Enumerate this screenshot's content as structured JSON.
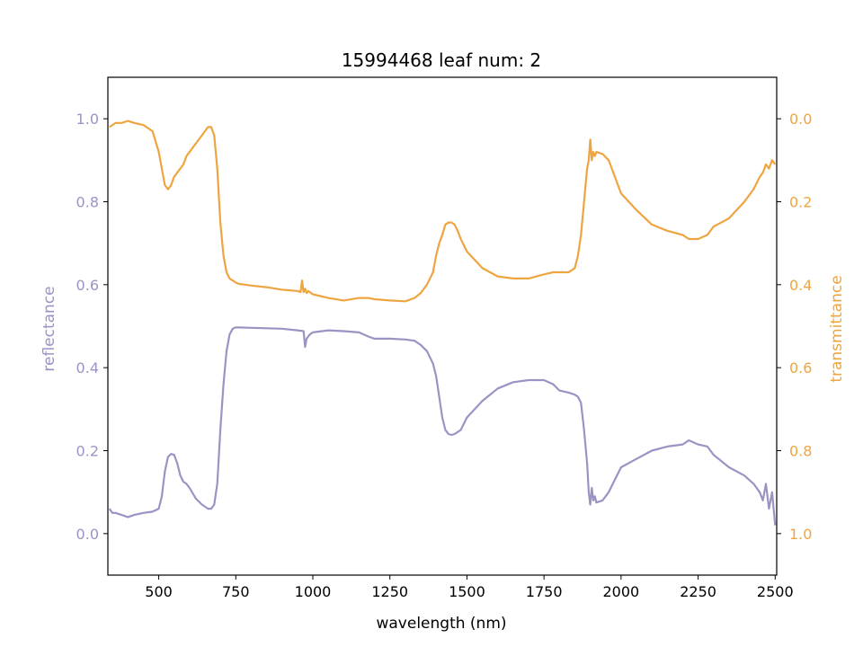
{
  "chart_data": {
    "type": "line",
    "title": "15994468 leaf num: 2",
    "xlabel": "wavelength (nm)",
    "ylabel": "reflectance",
    "y2label": "transmittance",
    "xlim": [
      335,
      2505
    ],
    "ylim": [
      -0.1,
      1.1
    ],
    "y2lim": [
      1.1,
      -0.1
    ],
    "x_ticks": [
      500,
      750,
      1000,
      1250,
      1500,
      1750,
      2000,
      2250,
      2500
    ],
    "y_ticks": [
      0.0,
      0.2,
      0.4,
      0.6,
      0.8,
      1.0
    ],
    "y2_ticks": [
      0.0,
      0.2,
      0.4,
      0.6,
      0.8,
      1.0
    ],
    "grid": false,
    "colors": {
      "reflectance": "#9a94c4",
      "transmittance": "#eea541"
    },
    "series": [
      {
        "name": "reflectance",
        "axis": "left",
        "x": [
          340,
          350,
          360,
          380,
          400,
          420,
          450,
          480,
          500,
          510,
          520,
          530,
          540,
          550,
          560,
          570,
          580,
          590,
          600,
          620,
          640,
          660,
          670,
          680,
          690,
          700,
          710,
          720,
          730,
          740,
          750,
          760,
          800,
          850,
          900,
          950,
          970,
          975,
          980,
          985,
          990,
          1000,
          1050,
          1100,
          1150,
          1180,
          1200,
          1250,
          1300,
          1330,
          1350,
          1370,
          1390,
          1400,
          1410,
          1420,
          1430,
          1440,
          1450,
          1460,
          1480,
          1500,
          1550,
          1600,
          1650,
          1700,
          1750,
          1780,
          1800,
          1830,
          1850,
          1860,
          1870,
          1880,
          1890,
          1895,
          1900,
          1905,
          1910,
          1915,
          1920,
          1940,
          1960,
          1980,
          2000,
          2050,
          2100,
          2150,
          2200,
          2220,
          2250,
          2280,
          2300,
          2350,
          2400,
          2430,
          2450,
          2460,
          2470,
          2480,
          2490,
          2500
        ],
        "values": [
          0.06,
          0.05,
          0.05,
          0.045,
          0.04,
          0.045,
          0.05,
          0.053,
          0.06,
          0.09,
          0.15,
          0.185,
          0.192,
          0.19,
          0.17,
          0.14,
          0.125,
          0.12,
          0.11,
          0.085,
          0.07,
          0.06,
          0.06,
          0.07,
          0.12,
          0.25,
          0.36,
          0.44,
          0.48,
          0.494,
          0.497,
          0.497,
          0.496,
          0.495,
          0.494,
          0.49,
          0.488,
          0.45,
          0.47,
          0.475,
          0.48,
          0.485,
          0.49,
          0.488,
          0.485,
          0.475,
          0.47,
          0.47,
          0.468,
          0.465,
          0.455,
          0.44,
          0.41,
          0.38,
          0.33,
          0.28,
          0.25,
          0.24,
          0.238,
          0.24,
          0.25,
          0.28,
          0.32,
          0.35,
          0.365,
          0.37,
          0.37,
          0.36,
          0.345,
          0.34,
          0.335,
          0.33,
          0.315,
          0.25,
          0.17,
          0.1,
          0.07,
          0.11,
          0.08,
          0.09,
          0.075,
          0.08,
          0.1,
          0.13,
          0.16,
          0.18,
          0.2,
          0.21,
          0.215,
          0.225,
          0.215,
          0.21,
          0.19,
          0.16,
          0.14,
          0.12,
          0.1,
          0.08,
          0.12,
          0.06,
          0.1,
          0.02
        ]
      },
      {
        "name": "transmittance",
        "axis": "right",
        "x": [
          340,
          350,
          360,
          380,
          400,
          420,
          450,
          480,
          500,
          510,
          520,
          530,
          540,
          550,
          560,
          570,
          580,
          590,
          600,
          620,
          640,
          650,
          660,
          670,
          680,
          690,
          700,
          710,
          720,
          730,
          740,
          750,
          760,
          780,
          800,
          850,
          900,
          950,
          960,
          965,
          970,
          975,
          980,
          985,
          1000,
          1050,
          1100,
          1150,
          1180,
          1200,
          1250,
          1300,
          1330,
          1350,
          1370,
          1390,
          1400,
          1410,
          1420,
          1430,
          1440,
          1450,
          1460,
          1470,
          1480,
          1500,
          1550,
          1600,
          1650,
          1700,
          1750,
          1780,
          1800,
          1830,
          1850,
          1860,
          1870,
          1880,
          1890,
          1895,
          1900,
          1905,
          1910,
          1915,
          1920,
          1940,
          1960,
          1980,
          2000,
          2050,
          2100,
          2150,
          2200,
          2220,
          2250,
          2280,
          2300,
          2350,
          2400,
          2430,
          2450,
          2460,
          2470,
          2480,
          2490,
          2500
        ],
        "values": [
          0.02,
          0.015,
          0.01,
          0.01,
          0.005,
          0.01,
          0.015,
          0.03,
          0.08,
          0.12,
          0.16,
          0.17,
          0.16,
          0.14,
          0.13,
          0.12,
          0.11,
          0.09,
          0.08,
          0.06,
          0.04,
          0.03,
          0.02,
          0.02,
          0.04,
          0.12,
          0.25,
          0.33,
          0.37,
          0.385,
          0.39,
          0.395,
          0.398,
          0.4,
          0.402,
          0.406,
          0.412,
          0.415,
          0.418,
          0.39,
          0.418,
          0.41,
          0.42,
          0.415,
          0.423,
          0.432,
          0.438,
          0.432,
          0.432,
          0.435,
          0.438,
          0.44,
          0.432,
          0.42,
          0.4,
          0.37,
          0.33,
          0.3,
          0.28,
          0.255,
          0.25,
          0.25,
          0.255,
          0.27,
          0.29,
          0.32,
          0.36,
          0.38,
          0.385,
          0.385,
          0.375,
          0.37,
          0.37,
          0.37,
          0.36,
          0.33,
          0.28,
          0.2,
          0.12,
          0.1,
          0.05,
          0.1,
          0.08,
          0.09,
          0.08,
          0.085,
          0.1,
          0.14,
          0.18,
          0.22,
          0.255,
          0.27,
          0.28,
          0.29,
          0.29,
          0.28,
          0.26,
          0.24,
          0.2,
          0.17,
          0.14,
          0.13,
          0.11,
          0.12,
          0.1,
          0.11
        ]
      }
    ]
  }
}
